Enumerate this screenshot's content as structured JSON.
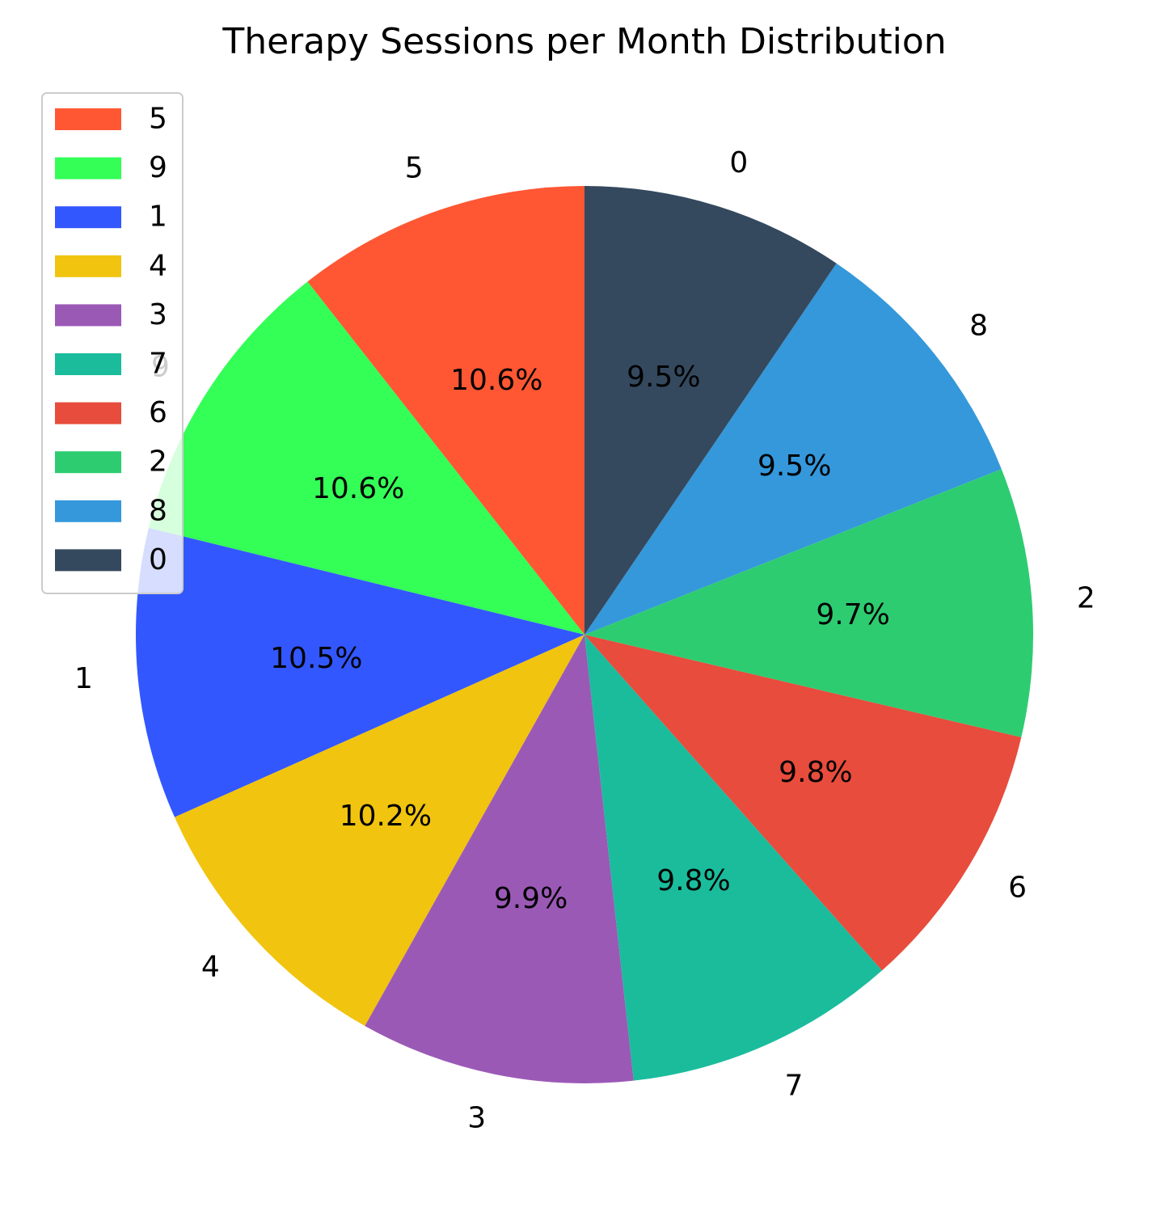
{
  "chart_data": {
    "type": "pie",
    "title": "Therapy Sessions per Month Distribution",
    "categories": [
      "5",
      "9",
      "1",
      "4",
      "3",
      "7",
      "6",
      "2",
      "8",
      "0"
    ],
    "values": [
      10.6,
      10.6,
      10.5,
      10.2,
      9.9,
      9.8,
      9.8,
      9.7,
      9.5,
      9.5
    ],
    "percent_labels": [
      "10.6%",
      "10.6%",
      "10.5%",
      "10.2%",
      "9.9%",
      "9.8%",
      "9.8%",
      "9.7%",
      "9.5%",
      "9.5%"
    ],
    "colors": [
      "#ff5733",
      "#33ff57",
      "#3357ff",
      "#f1c40f",
      "#9b59b6",
      "#1abc9c",
      "#e74c3c",
      "#2ecc71",
      "#3498db",
      "#34495e"
    ],
    "start_angle_deg": 90,
    "direction": "counterclockwise",
    "legend": {
      "placement": "upper-left",
      "entries": [
        "5",
        "9",
        "1",
        "4",
        "3",
        "7",
        "6",
        "2",
        "8",
        "0"
      ]
    }
  }
}
